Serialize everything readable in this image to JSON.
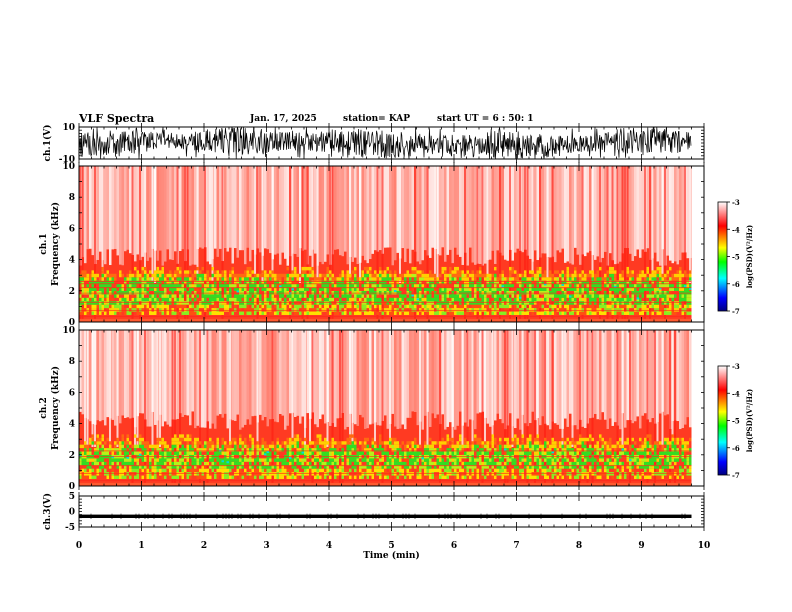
{
  "header": {
    "title": "VLF Spectra",
    "date": "Jan. 17, 2025",
    "station": "station= KAP",
    "start_ut": "start UT =  6 : 50: 1"
  },
  "chart_data": [
    {
      "type": "line",
      "name": "ch1-waveform",
      "ylabel": "ch.1(V)",
      "ylim": [
        -10,
        10
      ],
      "yticks": [
        "10",
        "-10"
      ],
      "x_range_min": [
        0,
        10
      ],
      "data_end_min": 9.8
    },
    {
      "type": "heatmap",
      "name": "ch1-spectrogram",
      "ylabel_top": "ch.1",
      "ylabel": "Frequency (kHz)",
      "ylim": [
        0,
        10
      ],
      "yticks": [
        "0",
        "2",
        "4",
        "6",
        "8",
        "10"
      ],
      "x_range_min": [
        0,
        10
      ],
      "data_end_min": 9.8,
      "colorbar": {
        "label": "log(PSD)(V²/Hz)",
        "range": [
          -7,
          -3
        ],
        "ticks": [
          "-3",
          "-4",
          "-5",
          "-6",
          "-7"
        ],
        "colors": [
          "#000080",
          "#0000ff",
          "#00ffff",
          "#00ff00",
          "#ffff00",
          "#ff8000",
          "#ff0000",
          "#ffffff"
        ]
      }
    },
    {
      "type": "heatmap",
      "name": "ch2-spectrogram",
      "ylabel_top": "ch.2",
      "ylabel": "Frequency (kHz)",
      "ylim": [
        0,
        10
      ],
      "yticks": [
        "0",
        "2",
        "4",
        "6",
        "8",
        "10"
      ],
      "x_range_min": [
        0,
        10
      ],
      "data_end_min": 9.8,
      "colorbar": {
        "label": "log(PSD)(V²/Hz)",
        "range": [
          -7,
          -3
        ],
        "ticks": [
          "-3",
          "-4",
          "-5",
          "-6",
          "-7"
        ]
      }
    },
    {
      "type": "line",
      "name": "ch3-waveform",
      "ylabel": "ch.3(V)",
      "ylim": [
        -5,
        5
      ],
      "yticks": [
        "5",
        "0",
        "-5"
      ],
      "x_range_min": [
        0,
        10
      ],
      "data_end_min": 9.8,
      "xlabel": "Time (min)",
      "xticks": [
        "0",
        "1",
        "2",
        "3",
        "4",
        "5",
        "6",
        "7",
        "8",
        "9",
        "10"
      ]
    }
  ],
  "colors": {
    "axis": "#000000",
    "spectral_low": "#33dd22",
    "spectral_mid": "#ffd000",
    "spectral_high": "#ff2a1a",
    "background": "#ffffff"
  }
}
